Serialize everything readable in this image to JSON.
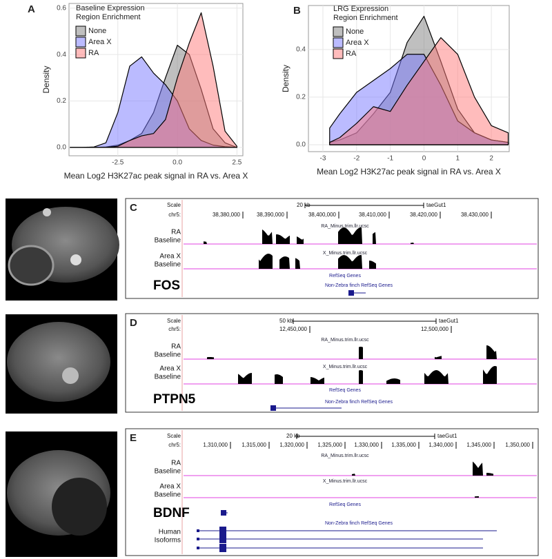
{
  "chart_data": [
    {
      "type": "area",
      "panel": "A",
      "x_label": "Mean Log2 H3K27ac peak signal in RA vs. Area X",
      "y_label": "Density",
      "legend_title": [
        "Baseline Expression",
        "Region Enrichment"
      ],
      "fill_opacity": 0.5,
      "grid": true,
      "x": [
        -4.5,
        -4,
        -3.5,
        -3,
        -2.5,
        -2,
        -1.5,
        -1,
        -0.5,
        0,
        0.5,
        1,
        1.5,
        2,
        2.5
      ],
      "xlim": [
        -4.55,
        2.75
      ],
      "xticks": [
        -2.5,
        {
          "value": 0,
          "label": "0.0"
        },
        2.5
      ],
      "ylim": [
        -0.036,
        0.62
      ],
      "yticks": [
        {
          "value": 0,
          "label": "0.0"
        },
        0.2,
        0.4,
        0.6
      ],
      "series": [
        {
          "name": "None",
          "color": "#808080",
          "values": [
            0,
            0,
            0,
            0.002,
            0.01,
            0.03,
            0.06,
            0.15,
            0.3,
            0.44,
            0.4,
            0.25,
            0.08,
            0.02,
            0
          ]
        },
        {
          "name": "Area X",
          "color": "#7878ff",
          "values": [
            0,
            0,
            0.002,
            0.02,
            0.15,
            0.35,
            0.39,
            0.32,
            0.27,
            0.2,
            0.08,
            0.03,
            0.01,
            0.003,
            0
          ]
        },
        {
          "name": "RA",
          "color": "#ff7a7a",
          "values": [
            0,
            0,
            0,
            0,
            0.005,
            0.03,
            0.05,
            0.06,
            0.12,
            0.3,
            0.45,
            0.58,
            0.35,
            0.07,
            0.005
          ]
        }
      ]
    },
    {
      "type": "area",
      "panel": "B",
      "x_label": "Mean Log2 H3K27ac peak signal in RA vs. Area X",
      "y_label": "Density",
      "legend_title": [
        "LRG Expression",
        "Region Enrichment"
      ],
      "fill_opacity": 0.5,
      "grid": true,
      "x": [
        -2.8,
        -2.5,
        -2,
        -1.5,
        -1,
        -0.5,
        0,
        0.5,
        1,
        1.5,
        2,
        2.5
      ],
      "xlim": [
        -3.43,
        2.53
      ],
      "xticks": [
        -3,
        -2,
        -1,
        0,
        1,
        2
      ],
      "ylim": [
        -0.029,
        0.585
      ],
      "yticks": [
        {
          "value": 0,
          "label": "0.0"
        },
        0.2,
        0.4
      ],
      "series": [
        {
          "name": "None",
          "color": "#808080",
          "values": [
            0.01,
            0.02,
            0.05,
            0.13,
            0.22,
            0.43,
            0.54,
            0.35,
            0.15,
            0.05,
            0.02,
            0.01
          ]
        },
        {
          "name": "Area X",
          "color": "#7878ff",
          "values": [
            0.07,
            0.13,
            0.22,
            0.27,
            0.32,
            0.38,
            0.38,
            0.25,
            0.1,
            0.05,
            0.02,
            0.01
          ]
        },
        {
          "name": "RA",
          "color": "#ff7a7a",
          "values": [
            0.01,
            0.03,
            0.09,
            0.16,
            0.14,
            0.25,
            0.35,
            0.45,
            0.38,
            0.2,
            0.08,
            0.05
          ]
        }
      ]
    }
  ],
  "tracks": [
    {
      "panel": "C",
      "gene": "FOS",
      "scale_label": "Scale",
      "scale": "20 kb",
      "assembly": "taeGut1",
      "chrom": "chr5:",
      "coords": [
        "38,380,000",
        "38,390,000",
        "38,400,000",
        "38,410,000",
        "38,420,000",
        "38,430,000"
      ],
      "rows": [
        {
          "name": [
            "RA",
            "Baseline"
          ],
          "track": "RA_Minus.trim.llr.ucsc"
        },
        {
          "name": [
            "Area X",
            "Baseline"
          ],
          "track": "X_Minus.trim.llr.ucsc"
        }
      ],
      "refseq": "RefSeq Genes",
      "other": "Non-Zebra finch RefSeq Genes"
    },
    {
      "panel": "D",
      "gene": "PTPN5",
      "scale_label": "Scale",
      "scale": "50 kb",
      "assembly": "taeGut1",
      "chrom": "chr5:",
      "coords": [
        "12,450,000",
        "12,500,000"
      ],
      "rows": [
        {
          "name": [
            "RA",
            "Baseline"
          ],
          "track": "RA_Minus.trim.llr.ucsc"
        },
        {
          "name": [
            "Area X",
            "Baseline"
          ],
          "track": "X_Minus.trim.llr.ucsc"
        }
      ],
      "refseq": "RefSeq Genes",
      "other": "Non-Zebra finch RefSeq Genes"
    },
    {
      "panel": "E",
      "gene": "BDNF",
      "scale_label": "Scale",
      "scale": "20 kb",
      "assembly": "taeGut1",
      "chrom": "chr5:",
      "coords": [
        "1,310,000",
        "1,315,000",
        "1,320,000",
        "1,325,000",
        "1,330,000",
        "1,335,000",
        "1,340,000",
        "1,345,000",
        "1,350,000"
      ],
      "rows": [
        {
          "name": [
            "RA",
            "Baseline"
          ],
          "track": "RA_Minus.trim.llr.ucsc"
        },
        {
          "name": [
            "Area X",
            "Baseline"
          ],
          "track": "X_Minus.trim.llr.ucsc"
        }
      ],
      "refseq": "RefSeq Genes",
      "other": "Non-Zebra finch RefSeq Genes",
      "isoforms": [
        "Human",
        "Isoforms"
      ]
    }
  ]
}
